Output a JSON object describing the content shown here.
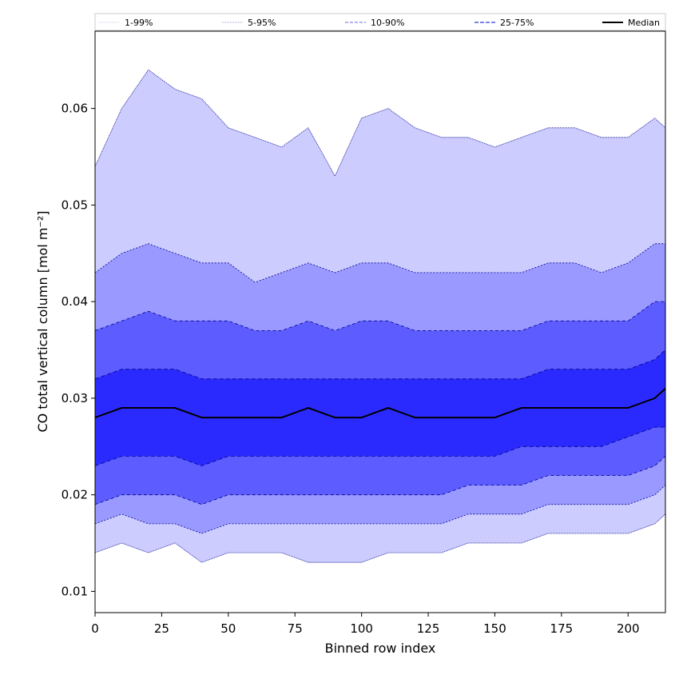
{
  "chart_data": {
    "type": "area",
    "title": "",
    "xlabel": "Binned row index",
    "ylabel": "CO total vertical column [mol m⁻²]",
    "xlim": [
      0,
      214
    ],
    "ylim": [
      0.0078,
      0.068
    ],
    "xticks": [
      0,
      25,
      50,
      75,
      100,
      125,
      150,
      175,
      200
    ],
    "yticks": [
      0.01,
      0.02,
      0.03,
      0.04,
      0.05,
      0.06
    ],
    "ytick_labels": [
      "0.01",
      "0.02",
      "0.03",
      "0.04",
      "0.05",
      "0.06"
    ],
    "grid": false,
    "legend_position": "top (horizontal, above plot)",
    "colors": {
      "band_1_99": "#ccccff",
      "band_5_95": "#9999ff",
      "band_10_90": "#5c5cff",
      "band_25_75": "#2a2aff",
      "edge": "#00008b",
      "median": "#000000"
    },
    "series_note_x_step": 10,
    "x": [
      0,
      10,
      20,
      30,
      40,
      50,
      60,
      70,
      80,
      90,
      100,
      110,
      120,
      130,
      140,
      150,
      160,
      170,
      180,
      190,
      200,
      210,
      214
    ],
    "bands": [
      {
        "name": "1-99%",
        "upper": [
          0.054,
          0.06,
          0.064,
          0.062,
          0.061,
          0.058,
          0.057,
          0.056,
          0.058,
          0.053,
          0.059,
          0.06,
          0.058,
          0.057,
          0.057,
          0.056,
          0.057,
          0.058,
          0.058,
          0.057,
          0.057,
          0.059,
          0.058
        ],
        "lower": [
          0.014,
          0.015,
          0.014,
          0.015,
          0.013,
          0.014,
          0.014,
          0.014,
          0.013,
          0.013,
          0.013,
          0.014,
          0.014,
          0.014,
          0.015,
          0.015,
          0.015,
          0.016,
          0.016,
          0.016,
          0.016,
          0.017,
          0.018
        ]
      },
      {
        "name": "5-95%",
        "upper": [
          0.043,
          0.045,
          0.046,
          0.045,
          0.044,
          0.044,
          0.042,
          0.043,
          0.044,
          0.043,
          0.044,
          0.044,
          0.043,
          0.043,
          0.043,
          0.043,
          0.043,
          0.044,
          0.044,
          0.043,
          0.044,
          0.046,
          0.046
        ],
        "lower": [
          0.017,
          0.018,
          0.017,
          0.017,
          0.016,
          0.017,
          0.017,
          0.017,
          0.017,
          0.017,
          0.017,
          0.017,
          0.017,
          0.017,
          0.018,
          0.018,
          0.018,
          0.019,
          0.019,
          0.019,
          0.019,
          0.02,
          0.021
        ]
      },
      {
        "name": "10-90%",
        "upper": [
          0.037,
          0.038,
          0.039,
          0.038,
          0.038,
          0.038,
          0.037,
          0.037,
          0.038,
          0.037,
          0.038,
          0.038,
          0.037,
          0.037,
          0.037,
          0.037,
          0.037,
          0.038,
          0.038,
          0.038,
          0.038,
          0.04,
          0.04
        ],
        "lower": [
          0.019,
          0.02,
          0.02,
          0.02,
          0.019,
          0.02,
          0.02,
          0.02,
          0.02,
          0.02,
          0.02,
          0.02,
          0.02,
          0.02,
          0.021,
          0.021,
          0.021,
          0.022,
          0.022,
          0.022,
          0.022,
          0.023,
          0.024
        ]
      },
      {
        "name": "25-75%",
        "upper": [
          0.032,
          0.033,
          0.033,
          0.033,
          0.032,
          0.032,
          0.032,
          0.032,
          0.032,
          0.032,
          0.032,
          0.032,
          0.032,
          0.032,
          0.032,
          0.032,
          0.032,
          0.033,
          0.033,
          0.033,
          0.033,
          0.034,
          0.035
        ],
        "lower": [
          0.023,
          0.024,
          0.024,
          0.024,
          0.023,
          0.024,
          0.024,
          0.024,
          0.024,
          0.024,
          0.024,
          0.024,
          0.024,
          0.024,
          0.024,
          0.024,
          0.025,
          0.025,
          0.025,
          0.025,
          0.026,
          0.027,
          0.027
        ]
      }
    ],
    "median": {
      "name": "Median",
      "values": [
        0.028,
        0.029,
        0.029,
        0.029,
        0.028,
        0.028,
        0.028,
        0.028,
        0.029,
        0.028,
        0.028,
        0.029,
        0.028,
        0.028,
        0.028,
        0.028,
        0.029,
        0.029,
        0.029,
        0.029,
        0.029,
        0.03,
        0.031
      ]
    },
    "legend": [
      "1-99%",
      "5-95%",
      "10-90%",
      "25-75%",
      "Median"
    ]
  }
}
